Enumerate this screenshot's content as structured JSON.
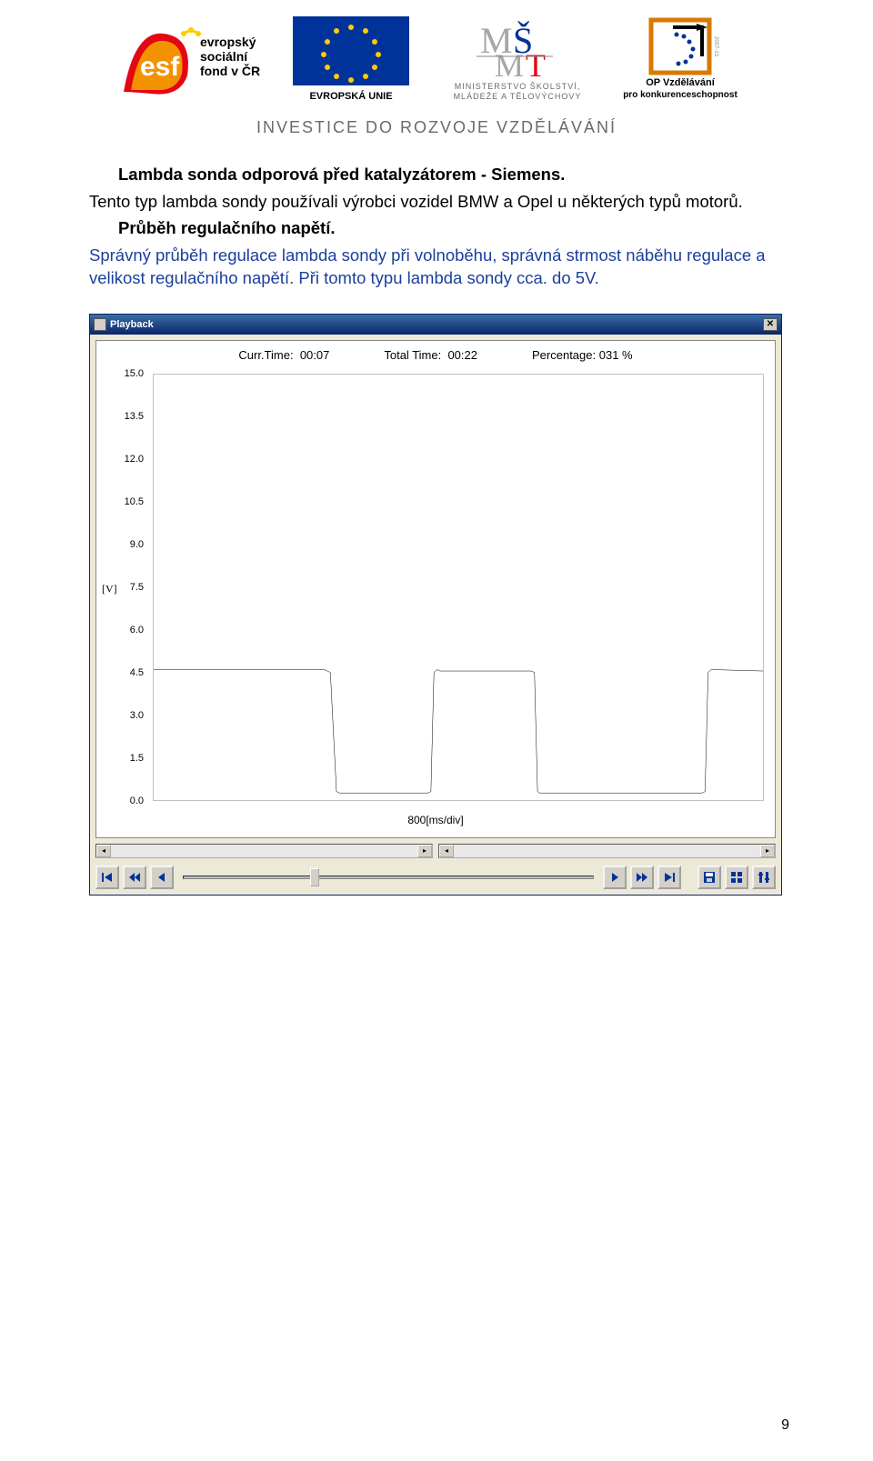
{
  "header": {
    "tagline": "INVESTICE DO ROZVOJE VZDĚLÁVÁNÍ",
    "logos": {
      "esf_top": "evropský",
      "esf_mid": "sociální",
      "esf_bot": "fond v ČR",
      "eu": "EVROPSKÁ UNIE",
      "msmt_line1": "MINISTERSTVO ŠKOLSTVÍ,",
      "msmt_line2": "MLÁDEŽE A TĚLOVÝCHOVY",
      "op_line1": "OP Vzdělávání",
      "op_line2": "pro konkurenceschopnost"
    }
  },
  "text": {
    "h1": "Lambda sonda odporová před katalyzátorem - Siemens.",
    "p1": "Tento typ lambda sondy používali výrobci vozidel BMW a Opel u některých typů motorů.",
    "h2": "Průběh regulačního napětí.",
    "p2a": "Správný průběh regulace lambda sondy při volnoběhu, správná strmost náběhu regulace a velikost regulačního napětí.",
    "p2b": " Při tomto typu lambda sondy cca. do 5V."
  },
  "playback": {
    "title": "Playback",
    "curr_time_label": "Curr.Time:",
    "curr_time": "00:07",
    "total_time_label": "Total Time:",
    "total_time": "00:22",
    "percentage_label": "Percentage:",
    "percentage": "031 %",
    "y_label": "[V]",
    "x_label": "800[ms/div]",
    "y_ticks": [
      "15.0",
      "13.5",
      "12.0",
      "10.5",
      "9.0",
      "7.5",
      "6.0",
      "4.5",
      "3.0",
      "1.5",
      "0.0"
    ],
    "chart": {
      "type": "line",
      "ylim": [
        0,
        15
      ],
      "xlim": [
        0,
        100
      ],
      "line_color": "#000000",
      "background_color": "#ffffff",
      "border_color": "#c0c0c0",
      "points": [
        [
          0,
          4.6
        ],
        [
          28,
          4.6
        ],
        [
          28.5,
          4.55
        ],
        [
          29,
          4.5
        ],
        [
          30,
          0.3
        ],
        [
          30.5,
          0.25
        ],
        [
          45,
          0.25
        ],
        [
          45.5,
          0.3
        ],
        [
          46,
          4.5
        ],
        [
          46.5,
          4.6
        ],
        [
          47,
          4.55
        ],
        [
          62,
          4.55
        ],
        [
          62.5,
          4.5
        ],
        [
          63,
          0.3
        ],
        [
          63.3,
          0.25
        ],
        [
          90,
          0.25
        ],
        [
          90.5,
          0.3
        ],
        [
          91,
          4.5
        ],
        [
          91.5,
          4.6
        ],
        [
          100,
          4.55
        ]
      ],
      "slider_pos_pct": 31
    }
  },
  "page_number": "9",
  "colors": {
    "titlebar_top": "#3a6ea5",
    "titlebar_bottom": "#0a246a",
    "window_bg": "#ece9d8",
    "button_bg": "#d4d0c8",
    "blue_text": "#1a3f9c",
    "esf_orange": "#f39200",
    "esf_red": "#e30613",
    "eu_blue": "#003399",
    "eu_gold": "#ffcc00",
    "op_orange": "#d87a00"
  }
}
